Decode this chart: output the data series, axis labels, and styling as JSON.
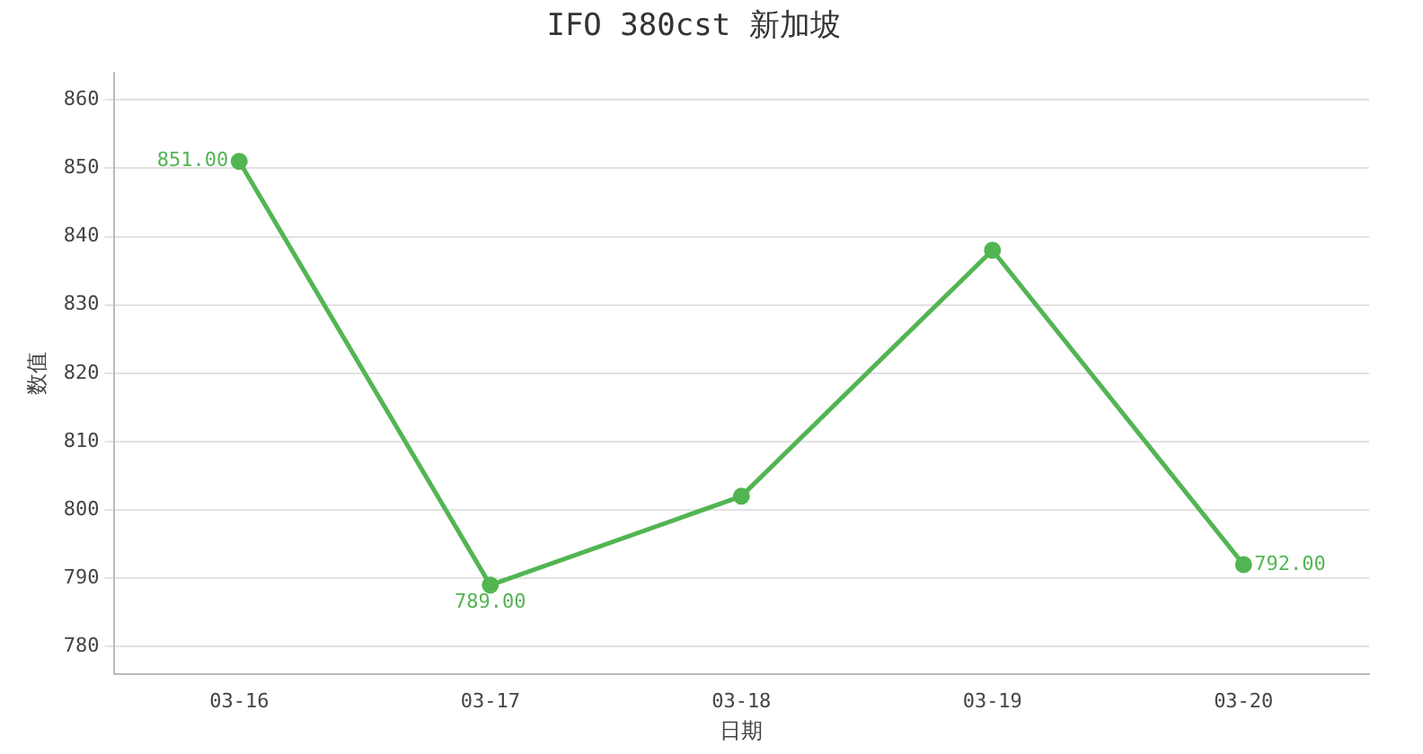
{
  "chart_data": {
    "type": "line",
    "title": "IFO 380cst 新加坡",
    "xlabel": "日期",
    "ylabel": "数值",
    "categories": [
      "03-16",
      "03-17",
      "03-18",
      "03-19",
      "03-20"
    ],
    "series": [
      {
        "color": "#52b552",
        "values": [
          851,
          789,
          802,
          838,
          792
        ],
        "value_labels": [
          "851.00",
          "789.00",
          null,
          null,
          "792.00"
        ]
      }
    ],
    "ylim": [
      776,
      864
    ],
    "yticks": [
      780,
      790,
      800,
      810,
      820,
      830,
      840,
      850,
      860
    ],
    "grid": "y",
    "legend": false,
    "marker": "circle",
    "line_style": "solid"
  }
}
